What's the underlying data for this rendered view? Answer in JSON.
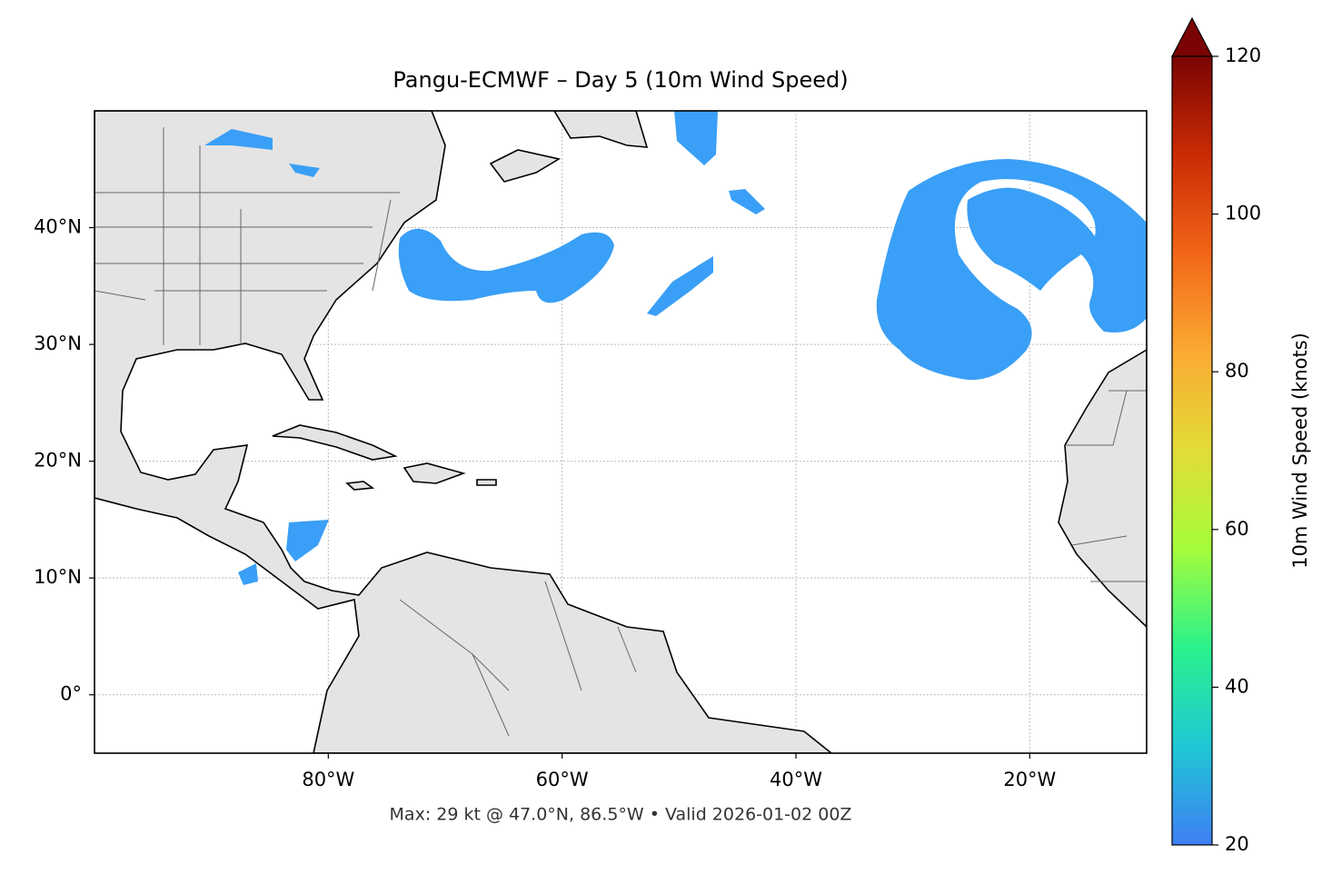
{
  "chart_data": {
    "type": "map",
    "title": "Pangu-ECMWF – Day 5 (10m Wind Speed)",
    "footnote": "Max: 29 kt @ 47.0°N, 86.5°W • Valid 2026-01-02 00Z",
    "xlim": [
      -100,
      -10
    ],
    "ylim": [
      -5,
      50
    ],
    "xticks": [
      {
        "value": -80,
        "label": "80°W"
      },
      {
        "value": -60,
        "label": "60°W"
      },
      {
        "value": -40,
        "label": "40°W"
      },
      {
        "value": -20,
        "label": "20°W"
      }
    ],
    "yticks": [
      {
        "value": 0,
        "label": "0°"
      },
      {
        "value": 10,
        "label": "10°N"
      },
      {
        "value": 20,
        "label": "20°N"
      },
      {
        "value": 30,
        "label": "30°N"
      },
      {
        "value": 40,
        "label": "40°N"
      }
    ],
    "grid": true,
    "colorbar": {
      "label": "10m Wind Speed (knots)",
      "lim": [
        20,
        120
      ],
      "ticks": [
        20,
        40,
        60,
        80,
        100,
        120
      ],
      "extend": "max",
      "colormap": [
        "#3f7ff5",
        "#1fc7d4",
        "#2af28c",
        "#a4fc3b",
        "#e2dc38",
        "#fbaa33",
        "#f26618",
        "#ca2b05",
        "#7a0403"
      ]
    }
  }
}
